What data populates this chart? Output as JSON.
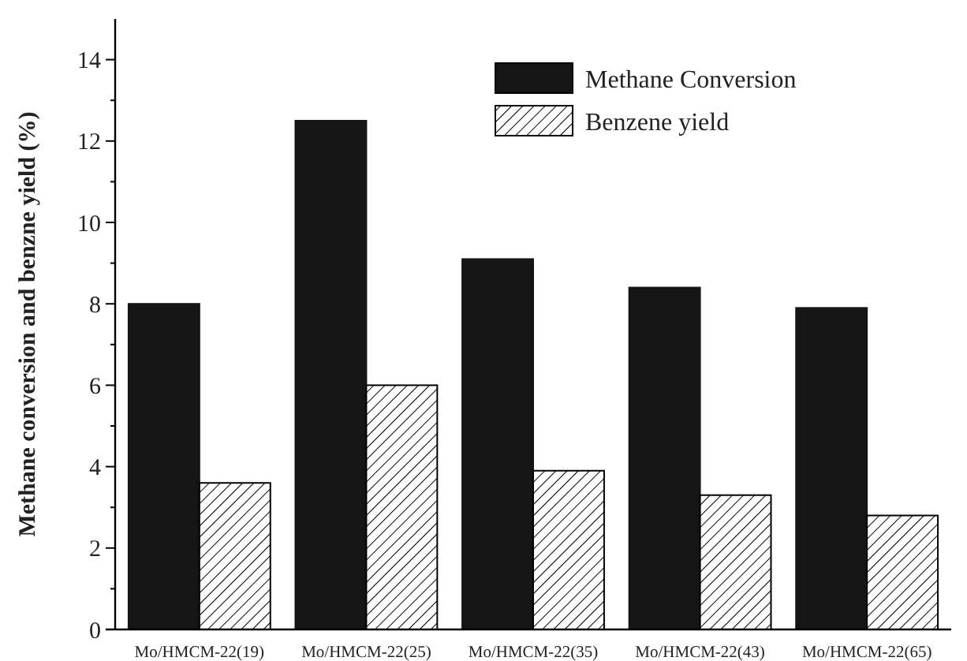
{
  "chart_data": {
    "type": "bar",
    "ylabel": "Methane conversion and benzne yield (%)",
    "categories": [
      "Mo/HMCM-22(19)",
      "Mo/HMCM-22(25)",
      "Mo/HMCM-22(35)",
      "Mo/HMCM-22(43)",
      "Mo/HMCM-22(65)"
    ],
    "series": [
      {
        "name": "Methane Conversion",
        "color": "#151515",
        "values": [
          8.0,
          12.5,
          9.1,
          8.4,
          7.9
        ]
      },
      {
        "name": "Benzene yield",
        "color": "#000000",
        "values": [
          3.6,
          6.0,
          3.9,
          3.3,
          2.8
        ]
      }
    ],
    "ylim": [
      0,
      15
    ],
    "yticks": [
      0,
      2,
      4,
      6,
      8,
      10,
      12,
      14
    ],
    "legend": "top right"
  }
}
